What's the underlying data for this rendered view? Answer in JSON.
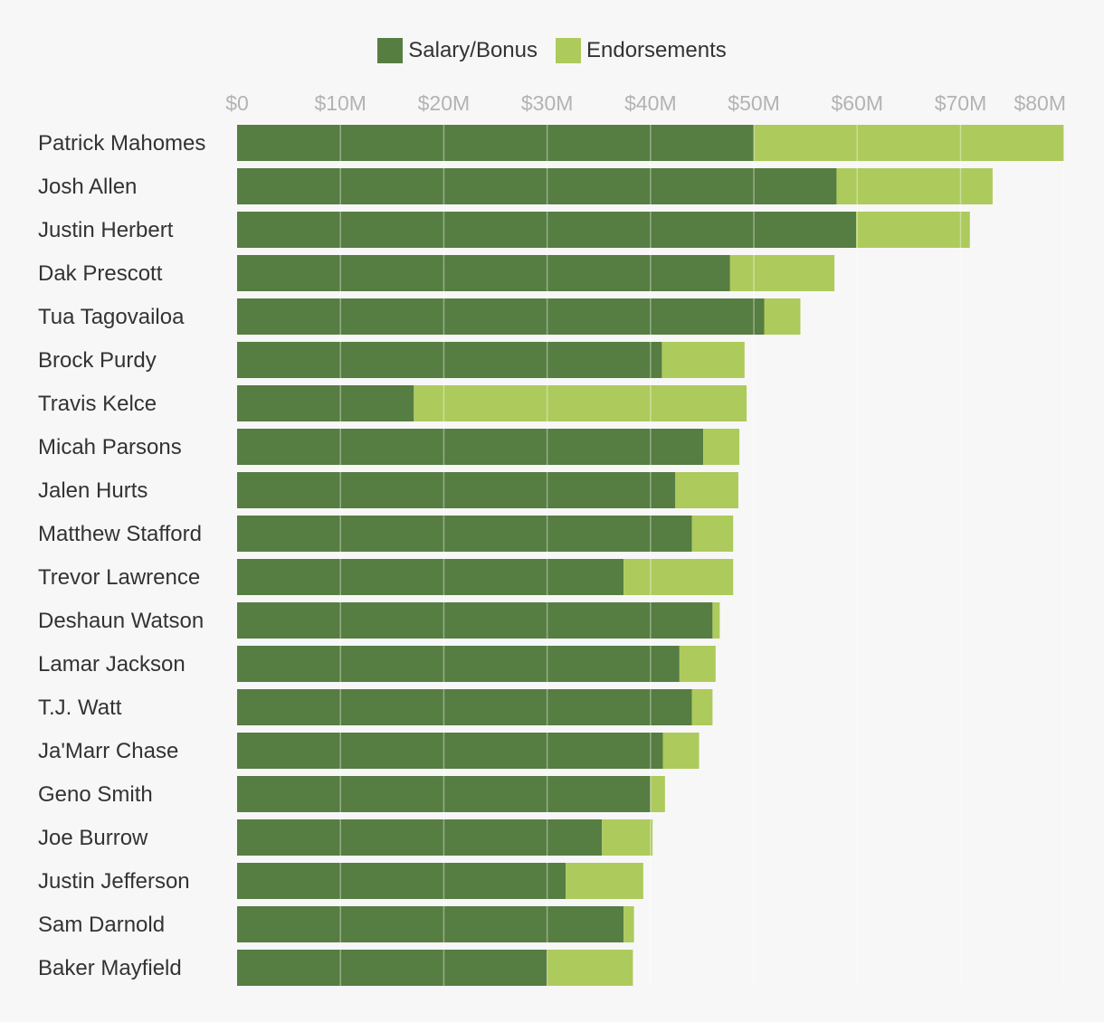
{
  "chart_data": {
    "type": "bar",
    "orientation": "horizontal",
    "stacked": true,
    "categories": [
      "Patrick Mahomes",
      "Josh Allen",
      "Justin Herbert",
      "Dak Prescott",
      "Tua Tagovailoa",
      "Brock Purdy",
      "Travis Kelce",
      "Micah Parsons",
      "Jalen Hurts",
      "Matthew Stafford",
      "Trevor Lawrence",
      "Deshaun Watson",
      "Lamar Jackson",
      "T.J. Watt",
      "Ja'Marr Chase",
      "Geno Smith",
      "Joe Burrow",
      "Justin Jefferson",
      "Sam Darnold",
      "Baker Mayfield"
    ],
    "series": [
      {
        "name": "Salary/Bonus",
        "color": "#567d42",
        "values": [
          50.0,
          58.0,
          59.9,
          47.7,
          51.0,
          41.1,
          17.1,
          45.1,
          42.4,
          44.0,
          37.4,
          46.0,
          42.8,
          44.0,
          41.2,
          40.0,
          35.3,
          31.8,
          37.4,
          30.0
        ]
      },
      {
        "name": "Endorsements",
        "color": "#adca5c",
        "values": [
          30.0,
          15.1,
          11.0,
          10.1,
          3.5,
          8.0,
          32.2,
          3.5,
          6.1,
          4.0,
          10.6,
          0.7,
          3.5,
          2.0,
          3.5,
          1.4,
          4.9,
          7.5,
          1.0,
          8.3
        ]
      }
    ],
    "x_ticks": [
      "$0",
      "$10M",
      "$20M",
      "$30M",
      "$40M",
      "$50M",
      "$60M",
      "$70M",
      "$80M"
    ],
    "x_tick_values": [
      0,
      10,
      20,
      30,
      40,
      50,
      60,
      70,
      80
    ],
    "xlim": [
      0,
      80.2
    ],
    "grid": true,
    "legend": "top-center",
    "title": "",
    "xlabel": "",
    "ylabel": ""
  }
}
